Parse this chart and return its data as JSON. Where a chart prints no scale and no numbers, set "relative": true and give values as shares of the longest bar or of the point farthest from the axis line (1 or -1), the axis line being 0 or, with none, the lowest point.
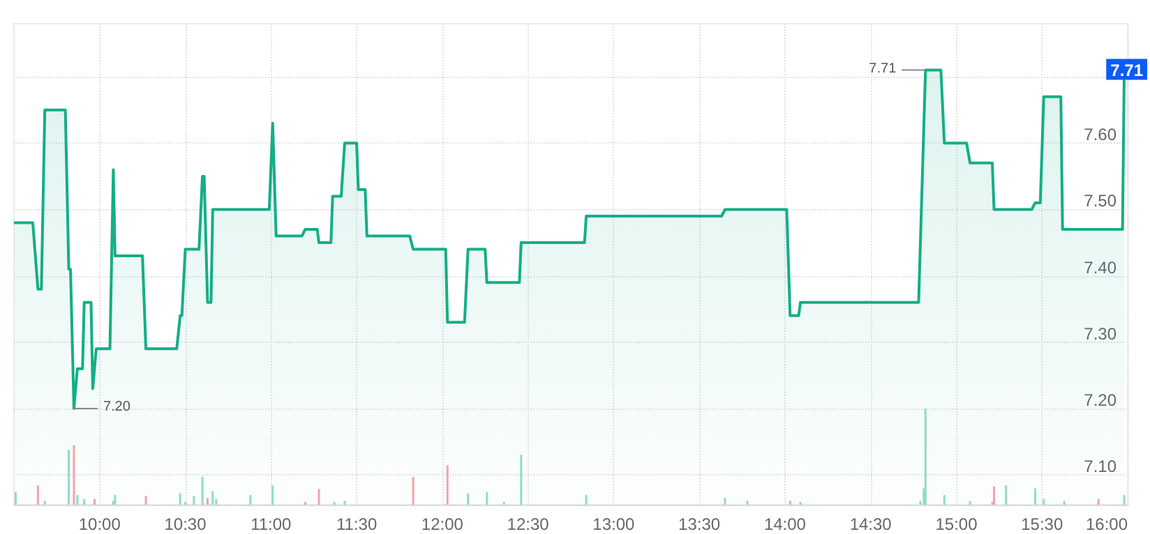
{
  "chart_data": [
    {
      "type": "area",
      "color": "#14ae86",
      "marker": "none",
      "grid": true,
      "x": [
        9.5,
        9.61,
        9.64,
        9.66,
        9.68,
        9.8,
        9.82,
        9.83,
        9.85,
        9.87,
        9.9,
        9.91,
        9.95,
        9.96,
        9.98,
        10.06,
        10.08,
        10.09,
        10.25,
        10.27,
        10.45,
        10.47,
        10.48,
        10.5,
        10.58,
        10.6,
        10.61,
        10.63,
        10.65,
        10.66,
        10.99,
        11.01,
        11.03,
        11.18,
        11.2,
        11.27,
        11.28,
        11.35,
        11.36,
        11.41,
        11.43,
        11.5,
        11.51,
        11.55,
        11.56,
        11.81,
        11.83,
        12.02,
        12.03,
        12.13,
        12.15,
        12.25,
        12.26,
        12.45,
        12.46,
        12.83,
        12.84,
        13.63,
        13.65,
        14.01,
        14.03,
        14.08,
        14.09,
        14.78,
        14.82,
        14.91,
        14.93,
        15.06,
        15.08,
        15.21,
        15.22,
        15.44,
        15.46,
        15.49,
        15.51,
        15.61,
        15.62,
        15.97,
        15.98
      ],
      "values": [
        7.48,
        7.48,
        7.38,
        7.38,
        7.65,
        7.65,
        7.41,
        7.41,
        7.2,
        7.26,
        7.26,
        7.36,
        7.36,
        7.23,
        7.29,
        7.29,
        7.56,
        7.43,
        7.43,
        7.29,
        7.29,
        7.34,
        7.34,
        7.44,
        7.44,
        7.55,
        7.55,
        7.36,
        7.36,
        7.5,
        7.5,
        7.63,
        7.46,
        7.46,
        7.47,
        7.47,
        7.45,
        7.45,
        7.52,
        7.52,
        7.6,
        7.6,
        7.53,
        7.53,
        7.46,
        7.46,
        7.44,
        7.44,
        7.33,
        7.33,
        7.44,
        7.44,
        7.39,
        7.39,
        7.45,
        7.45,
        7.49,
        7.49,
        7.5,
        7.5,
        7.34,
        7.34,
        7.36,
        7.36,
        7.71,
        7.71,
        7.6,
        7.6,
        7.57,
        7.57,
        7.5,
        7.5,
        7.51,
        7.51,
        7.67,
        7.67,
        7.47,
        7.47,
        7.71
      ],
      "xlim": [
        9.5,
        16
      ],
      "ylim": [
        7.055,
        7.78
      ],
      "xticks": [
        {
          "value": 10,
          "label": "10:00"
        },
        {
          "value": 10.5,
          "label": "10:30"
        },
        {
          "value": 11,
          "label": "11:00"
        },
        {
          "value": 11.5,
          "label": "11:30"
        },
        {
          "value": 12,
          "label": "12:00"
        },
        {
          "value": 12.5,
          "label": "12:30"
        },
        {
          "value": 13,
          "label": "13:00"
        },
        {
          "value": 13.5,
          "label": "13:30"
        },
        {
          "value": 14,
          "label": "14:00"
        },
        {
          "value": 14.5,
          "label": "14:30"
        },
        {
          "value": 15,
          "label": "15:00"
        },
        {
          "value": 15.5,
          "label": "15:30"
        },
        {
          "value": 16,
          "label": "16:00"
        }
      ],
      "yticks": [
        {
          "value": 7.1,
          "label": "7.10"
        },
        {
          "value": 7.2,
          "label": "7.20"
        },
        {
          "value": 7.3,
          "label": "7.30"
        },
        {
          "value": 7.4,
          "label": "7.40"
        },
        {
          "value": 7.5,
          "label": "7.50"
        },
        {
          "value": 7.6,
          "label": "7.60"
        },
        {
          "value": 7.7,
          "label": null
        }
      ],
      "annotations": [
        {
          "text": "7.20",
          "x": 9.85,
          "y": 7.2
        },
        {
          "text": "7.71",
          "x": 14.82,
          "y": 7.71
        },
        {
          "text": "7.71",
          "x": 16,
          "y": 7.71
        }
      ]
    },
    {
      "type": "bar",
      "relative": true,
      "tick_labels": false,
      "xlim": [
        9.5,
        16
      ],
      "x": [
        9.51,
        9.64,
        9.68,
        9.82,
        9.85,
        9.87,
        9.91,
        9.97,
        10.08,
        10.09,
        10.27,
        10.47,
        10.5,
        10.55,
        10.6,
        10.63,
        10.66,
        10.68,
        10.88,
        11.01,
        11.2,
        11.28,
        11.37,
        11.43,
        11.83,
        12.03,
        12.15,
        12.26,
        12.36,
        12.46,
        12.84,
        13.65,
        13.78,
        14.03,
        14.09,
        14.79,
        14.81,
        14.82,
        14.93,
        15.08,
        15.21,
        15.22,
        15.29,
        15.46,
        15.51,
        15.63,
        15.83,
        15.98
      ],
      "values": [
        0.13,
        0.2,
        0.04,
        0.57,
        0.62,
        0.1,
        0.06,
        0.06,
        0.04,
        0.1,
        0.09,
        0.12,
        0.03,
        0.09,
        0.29,
        0.07,
        0.14,
        0.06,
        0.1,
        0.2,
        0.03,
        0.16,
        0.03,
        0.04,
        0.29,
        0.41,
        0.12,
        0.13,
        0.03,
        0.52,
        0.1,
        0.07,
        0.04,
        0.04,
        0.03,
        0.04,
        0.17,
        1,
        0.1,
        0.04,
        0.03,
        0.19,
        0.2,
        0.17,
        0.06,
        0.04,
        0.06,
        0.1
      ],
      "colors": [
        "#8fdcc6",
        "#f4a3a8",
        "#8fdcc6",
        "#8fdcc6",
        "#f4a3a8",
        "#8fdcc6",
        "#8fdcc6",
        "#f4a3a8",
        "#8fdcc6",
        "#8fdcc6",
        "#f4a3a8",
        "#8fdcc6",
        "#8fdcc6",
        "#8fdcc6",
        "#8fdcc6",
        "#f4a3a8",
        "#8fdcc6",
        "#8fdcc6",
        "#8fdcc6",
        "#8fdcc6",
        "#f4a3a8",
        "#f4a3a8",
        "#8fdcc6",
        "#8fdcc6",
        "#f4a3a8",
        "#f4a3a8",
        "#8fdcc6",
        "#8fdcc6",
        "#8fdcc6",
        "#8fdcc6",
        "#8fdcc6",
        "#8fdcc6",
        "#8fdcc6",
        "#f4a3a8",
        "#8fdcc6",
        "#8fdcc6",
        "#8fdcc6",
        "#8fdcc6",
        "#8fdcc6",
        "#8fdcc6",
        "#f4a3a8",
        "#f4a3a8",
        "#8fdcc6",
        "#8fdcc6",
        "#8fdcc6",
        "#8fdcc6",
        "#f4a3a8",
        "#8fdcc6"
      ]
    }
  ]
}
